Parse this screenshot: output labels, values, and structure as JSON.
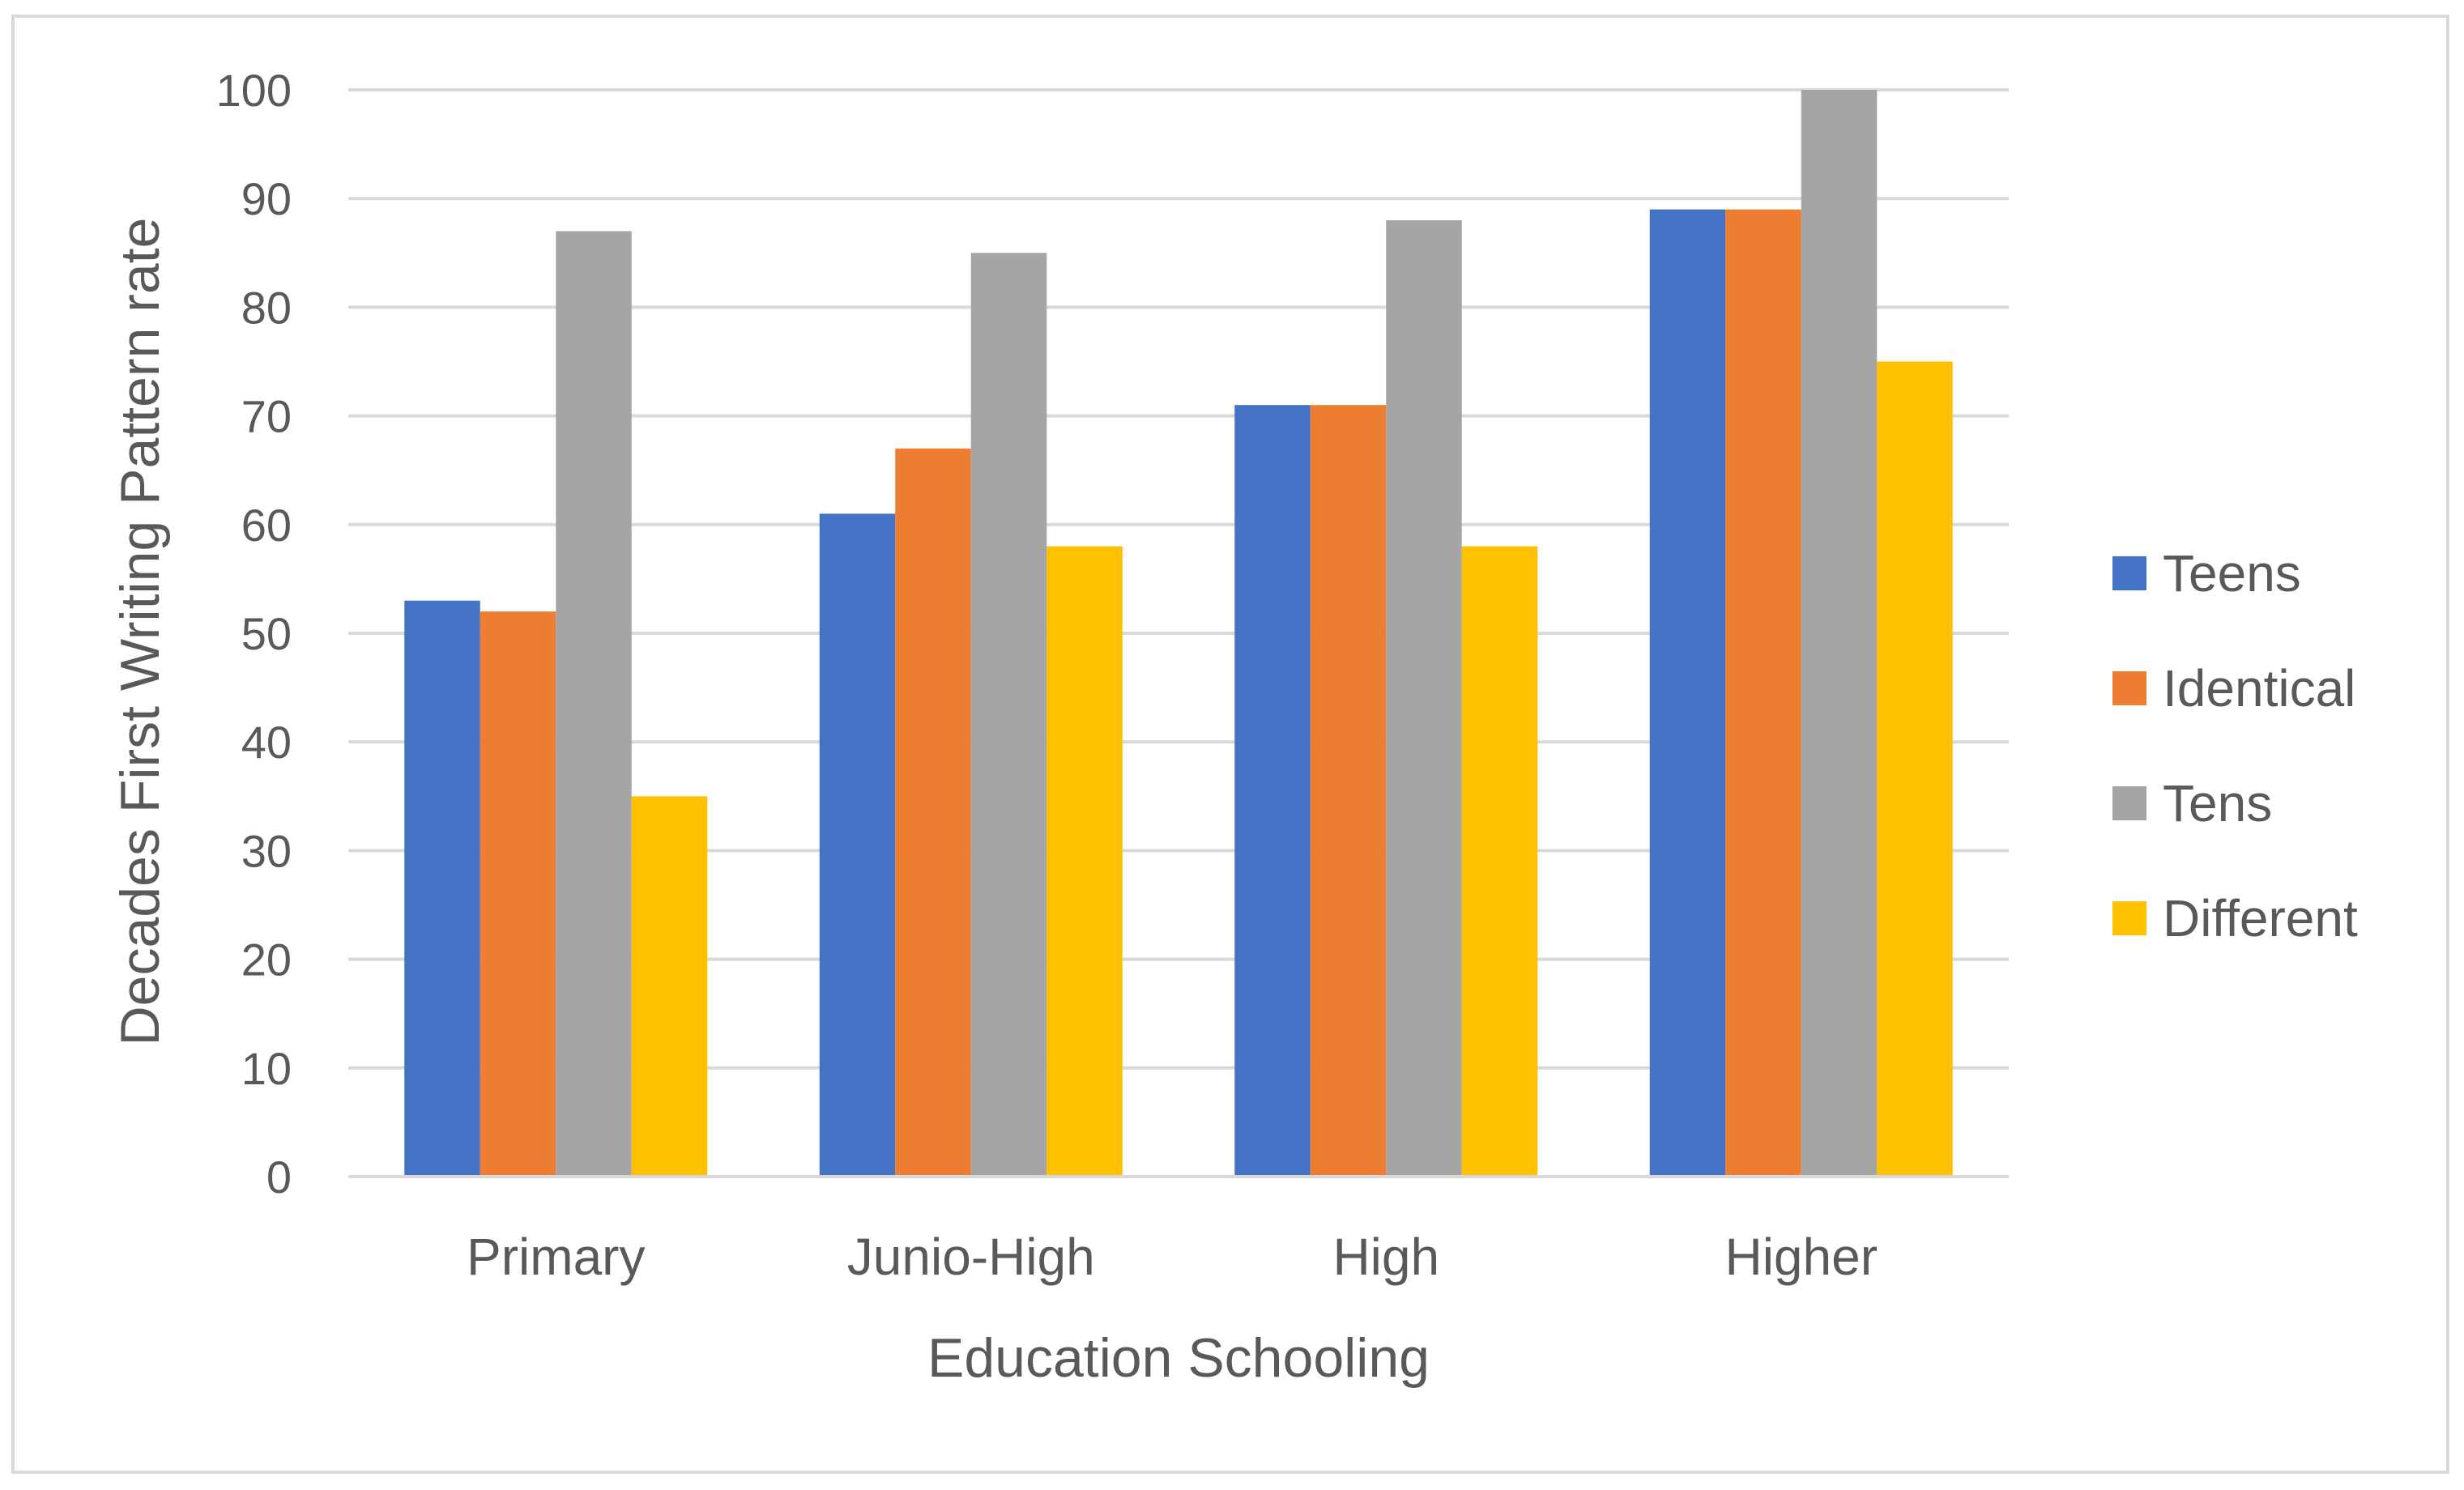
{
  "chart_data": {
    "type": "bar",
    "title": "",
    "xlabel": "Education Schooling",
    "ylabel": "Decades First Writing Pattern rate",
    "ylim": [
      0,
      100
    ],
    "yticks": [
      0,
      10,
      20,
      30,
      40,
      50,
      60,
      70,
      80,
      90,
      100
    ],
    "grid": true,
    "legend_position": "right",
    "categories": [
      "Primary",
      "Junio-High",
      "High",
      "Higher"
    ],
    "series": [
      {
        "name": "Teens",
        "color": "#4472C4",
        "values": [
          53,
          61,
          71,
          89
        ]
      },
      {
        "name": "Identical",
        "color": "#ED7D31",
        "values": [
          52,
          67,
          71,
          89
        ]
      },
      {
        "name": "Tens",
        "color": "#A5A5A5",
        "values": [
          87,
          85,
          88,
          100
        ]
      },
      {
        "name": "Different",
        "color": "#FFC000",
        "values": [
          35,
          58,
          58,
          75
        ]
      }
    ]
  }
}
